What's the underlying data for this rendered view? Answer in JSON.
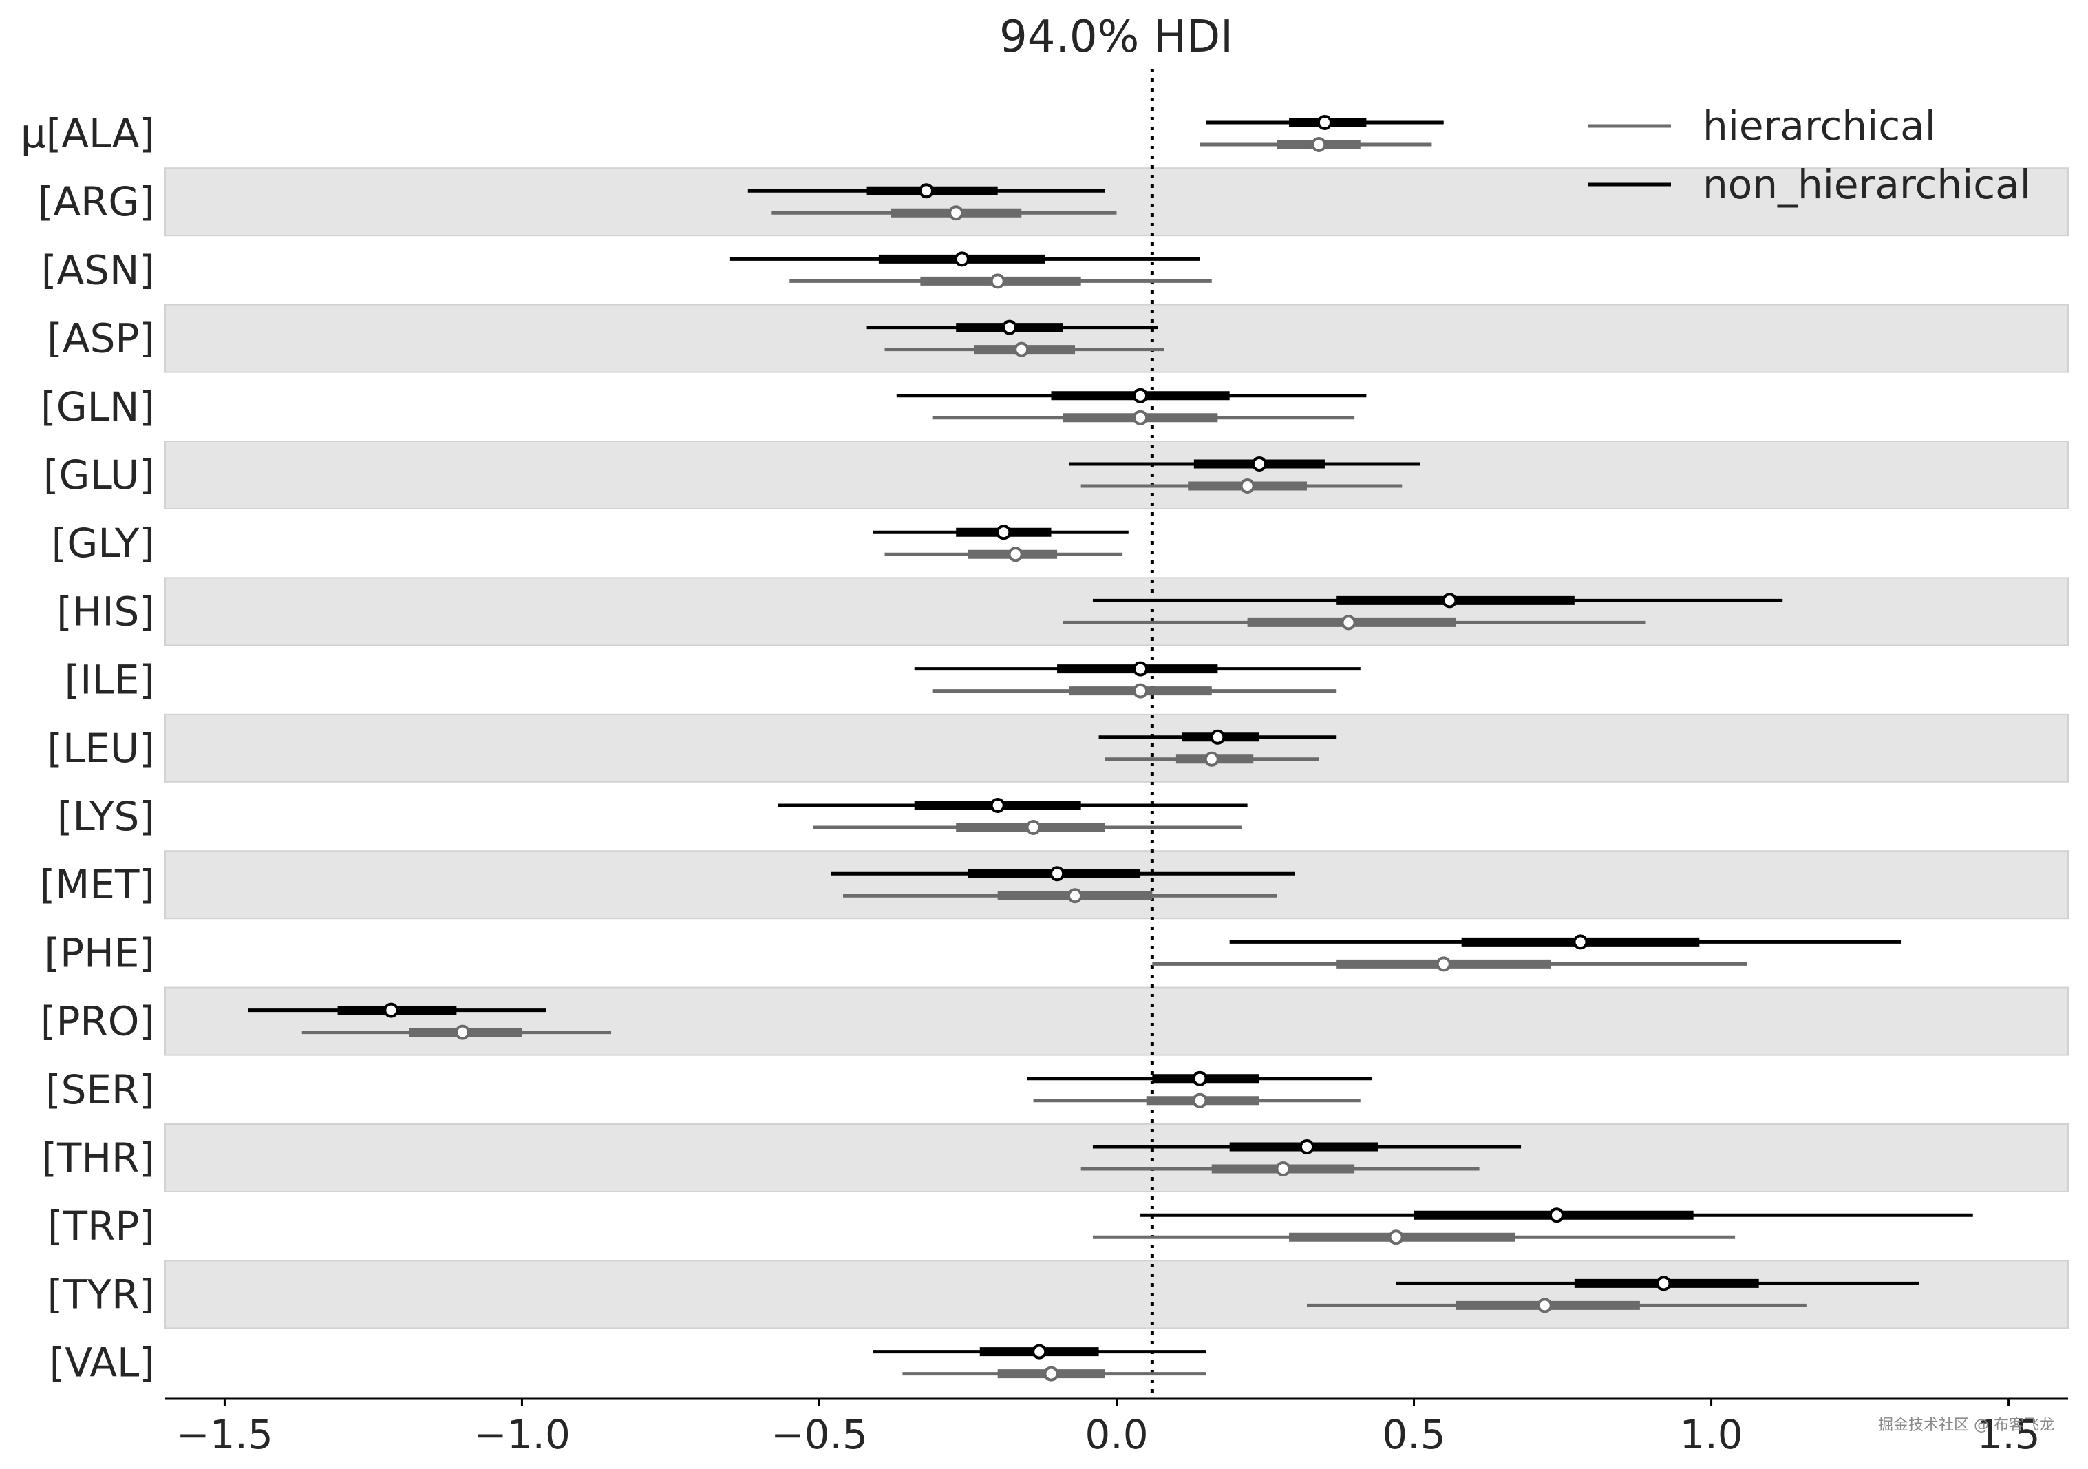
{
  "chart_data": {
    "type": "forest",
    "title": "94.0% HDI",
    "xlim": [
      -1.6,
      1.6
    ],
    "xticks": [
      -1.5,
      -1.0,
      -0.5,
      0.0,
      0.5,
      1.0,
      1.5
    ],
    "xtick_labels": [
      "−1.5",
      "−1.0",
      "−0.5",
      "0.0",
      "0.5",
      "1.0",
      "1.5"
    ],
    "reference_line": 0.06,
    "alternating_row_shading": true,
    "legend_position": "top-right",
    "series": [
      {
        "name": "hierarchical",
        "color": "#6b6b6b"
      },
      {
        "name": "non_hierarchical",
        "color": "#000000"
      }
    ],
    "rows": [
      {
        "label": "μ[ALA]",
        "non_hierarchical": {
          "hdi": [
            0.15,
            0.55
          ],
          "iqr": [
            0.29,
            0.42
          ],
          "mean": 0.35
        },
        "hierarchical": {
          "hdi": [
            0.14,
            0.53
          ],
          "iqr": [
            0.27,
            0.41
          ],
          "mean": 0.34
        }
      },
      {
        "label": "[ARG]",
        "non_hierarchical": {
          "hdi": [
            -0.62,
            -0.02
          ],
          "iqr": [
            -0.42,
            -0.2
          ],
          "mean": -0.32
        },
        "hierarchical": {
          "hdi": [
            -0.58,
            0.0
          ],
          "iqr": [
            -0.38,
            -0.16
          ],
          "mean": -0.27
        }
      },
      {
        "label": "[ASN]",
        "non_hierarchical": {
          "hdi": [
            -0.65,
            0.14
          ],
          "iqr": [
            -0.4,
            -0.12
          ],
          "mean": -0.26
        },
        "hierarchical": {
          "hdi": [
            -0.55,
            0.16
          ],
          "iqr": [
            -0.33,
            -0.06
          ],
          "mean": -0.2
        }
      },
      {
        "label": "[ASP]",
        "non_hierarchical": {
          "hdi": [
            -0.42,
            0.07
          ],
          "iqr": [
            -0.27,
            -0.09
          ],
          "mean": -0.18
        },
        "hierarchical": {
          "hdi": [
            -0.39,
            0.08
          ],
          "iqr": [
            -0.24,
            -0.07
          ],
          "mean": -0.16
        }
      },
      {
        "label": "[GLN]",
        "non_hierarchical": {
          "hdi": [
            -0.37,
            0.42
          ],
          "iqr": [
            -0.11,
            0.19
          ],
          "mean": 0.04
        },
        "hierarchical": {
          "hdi": [
            -0.31,
            0.4
          ],
          "iqr": [
            -0.09,
            0.17
          ],
          "mean": 0.04
        }
      },
      {
        "label": "[GLU]",
        "non_hierarchical": {
          "hdi": [
            -0.08,
            0.51
          ],
          "iqr": [
            0.13,
            0.35
          ],
          "mean": 0.24
        },
        "hierarchical": {
          "hdi": [
            -0.06,
            0.48
          ],
          "iqr": [
            0.12,
            0.32
          ],
          "mean": 0.22
        }
      },
      {
        "label": "[GLY]",
        "non_hierarchical": {
          "hdi": [
            -0.41,
            0.02
          ],
          "iqr": [
            -0.27,
            -0.11
          ],
          "mean": -0.19
        },
        "hierarchical": {
          "hdi": [
            -0.39,
            0.01
          ],
          "iqr": [
            -0.25,
            -0.1
          ],
          "mean": -0.17
        }
      },
      {
        "label": "[HIS]",
        "non_hierarchical": {
          "hdi": [
            -0.04,
            1.12
          ],
          "iqr": [
            0.37,
            0.77
          ],
          "mean": 0.56
        },
        "hierarchical": {
          "hdi": [
            -0.09,
            0.89
          ],
          "iqr": [
            0.22,
            0.57
          ],
          "mean": 0.39
        }
      },
      {
        "label": "[ILE]",
        "non_hierarchical": {
          "hdi": [
            -0.34,
            0.41
          ],
          "iqr": [
            -0.1,
            0.17
          ],
          "mean": 0.04
        },
        "hierarchical": {
          "hdi": [
            -0.31,
            0.37
          ],
          "iqr": [
            -0.08,
            0.16
          ],
          "mean": 0.04
        }
      },
      {
        "label": "[LEU]",
        "non_hierarchical": {
          "hdi": [
            -0.03,
            0.37
          ],
          "iqr": [
            0.11,
            0.24
          ],
          "mean": 0.17
        },
        "hierarchical": {
          "hdi": [
            -0.02,
            0.34
          ],
          "iqr": [
            0.1,
            0.23
          ],
          "mean": 0.16
        }
      },
      {
        "label": "[LYS]",
        "non_hierarchical": {
          "hdi": [
            -0.57,
            0.22
          ],
          "iqr": [
            -0.34,
            -0.06
          ],
          "mean": -0.2
        },
        "hierarchical": {
          "hdi": [
            -0.51,
            0.21
          ],
          "iqr": [
            -0.27,
            -0.02
          ],
          "mean": -0.14
        }
      },
      {
        "label": "[MET]",
        "non_hierarchical": {
          "hdi": [
            -0.48,
            0.3
          ],
          "iqr": [
            -0.25,
            0.04
          ],
          "mean": -0.1
        },
        "hierarchical": {
          "hdi": [
            -0.46,
            0.27
          ],
          "iqr": [
            -0.2,
            0.06
          ],
          "mean": -0.07
        }
      },
      {
        "label": "[PHE]",
        "non_hierarchical": {
          "hdi": [
            0.19,
            1.32
          ],
          "iqr": [
            0.58,
            0.98
          ],
          "mean": 0.78
        },
        "hierarchical": {
          "hdi": [
            0.06,
            1.06
          ],
          "iqr": [
            0.37,
            0.73
          ],
          "mean": 0.55
        }
      },
      {
        "label": "[PRO]",
        "non_hierarchical": {
          "hdi": [
            -1.46,
            -0.96
          ],
          "iqr": [
            -1.31,
            -1.11
          ],
          "mean": -1.22
        },
        "hierarchical": {
          "hdi": [
            -1.37,
            -0.85
          ],
          "iqr": [
            -1.19,
            -1.0
          ],
          "mean": -1.1
        }
      },
      {
        "label": "[SER]",
        "non_hierarchical": {
          "hdi": [
            -0.15,
            0.43
          ],
          "iqr": [
            0.06,
            0.24
          ],
          "mean": 0.14
        },
        "hierarchical": {
          "hdi": [
            -0.14,
            0.41
          ],
          "iqr": [
            0.05,
            0.24
          ],
          "mean": 0.14
        }
      },
      {
        "label": "[THR]",
        "non_hierarchical": {
          "hdi": [
            -0.04,
            0.68
          ],
          "iqr": [
            0.19,
            0.44
          ],
          "mean": 0.32
        },
        "hierarchical": {
          "hdi": [
            -0.06,
            0.61
          ],
          "iqr": [
            0.16,
            0.4
          ],
          "mean": 0.28
        }
      },
      {
        "label": "[TRP]",
        "non_hierarchical": {
          "hdi": [
            0.04,
            1.44
          ],
          "iqr": [
            0.5,
            0.97
          ],
          "mean": 0.74
        },
        "hierarchical": {
          "hdi": [
            -0.04,
            1.04
          ],
          "iqr": [
            0.29,
            0.67
          ],
          "mean": 0.47
        }
      },
      {
        "label": "[TYR]",
        "non_hierarchical": {
          "hdi": [
            0.47,
            1.35
          ],
          "iqr": [
            0.77,
            1.08
          ],
          "mean": 0.92
        },
        "hierarchical": {
          "hdi": [
            0.32,
            1.16
          ],
          "iqr": [
            0.57,
            0.88
          ],
          "mean": 0.72
        }
      },
      {
        "label": "[VAL]",
        "non_hierarchical": {
          "hdi": [
            -0.41,
            0.15
          ],
          "iqr": [
            -0.23,
            -0.03
          ],
          "mean": -0.13
        },
        "hierarchical": {
          "hdi": [
            -0.36,
            0.15
          ],
          "iqr": [
            -0.2,
            -0.02
          ],
          "mean": -0.11
        }
      }
    ]
  },
  "watermark": {
    "text": "掘金技术社区 @ 布客飞龙"
  }
}
